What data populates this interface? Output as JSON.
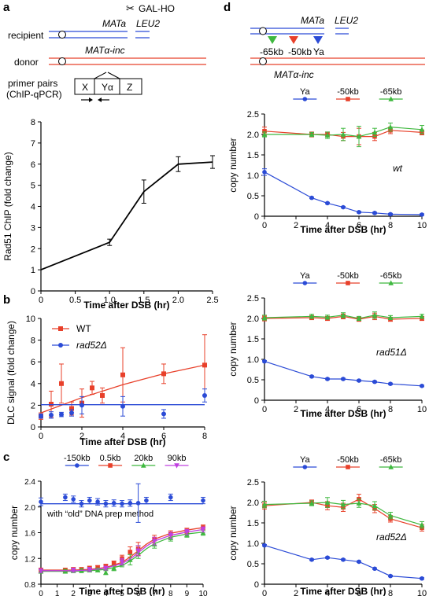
{
  "schematic_left": {
    "panel_letter": "a",
    "recipient_label": "recipient",
    "donor_label": "donor",
    "primer_label_line1": "primer pairs",
    "primer_label_line2": "(ChIP-qPCR)",
    "mata_label": "MATa",
    "leu2_label": "LEU2",
    "galho_label": "GAL-HO",
    "matalpha_label": "MATα-inc",
    "box_x": "X",
    "box_ya": "Yα",
    "box_z": "Z"
  },
  "schematic_right": {
    "panel_letter": "d",
    "mata_label": "MATa",
    "leu2_label": "LEU2",
    "matalpha_label": "MATα-inc",
    "pos_65_label": "-65kb",
    "pos_50_label": "-50kb",
    "pos_ya_label": "Ya"
  },
  "colors": {
    "blue": "#2b4bd6",
    "red": "#e8402a",
    "green": "#3fb83f",
    "magenta": "#c040e0",
    "black": "#000000"
  },
  "chart_data": [
    {
      "id": "a",
      "type": "line",
      "xlabel": "Time after DSB (hr)",
      "ylabel": "Rad51 ChIP (fold change)",
      "xlim": [
        0,
        2.5
      ],
      "ylim": [
        0,
        8
      ],
      "xticks": [
        "0",
        "0.5",
        "1.0",
        "1.5",
        "2.0",
        "2.5"
      ],
      "yticks": [
        "0",
        "1",
        "2",
        "3",
        "4",
        "5",
        "6",
        "7",
        "8"
      ],
      "series": [
        {
          "color": "#000000",
          "x": [
            0,
            1.0,
            1.5,
            2.0,
            2.5
          ],
          "y": [
            1.0,
            2.3,
            4.7,
            6.0,
            6.1
          ],
          "err": [
            0,
            0.15,
            0.55,
            0.35,
            0.3
          ]
        }
      ]
    },
    {
      "id": "b",
      "type": "scatter",
      "panel_letter": "b",
      "xlabel": "Time after DSB (hr)",
      "ylabel": "DLC signal (fold change)",
      "xlim": [
        0,
        8
      ],
      "ylim": [
        0,
        10
      ],
      "xticks": [
        "0",
        "2",
        "4",
        "6",
        "8"
      ],
      "yticks": [
        "0",
        "2",
        "4",
        "6",
        "8",
        "10"
      ],
      "legend": [
        {
          "name": "WT",
          "color": "#e8402a"
        },
        {
          "name": "rad52Δ",
          "color": "#2b4bd6"
        }
      ],
      "series": [
        {
          "name": "WT",
          "color": "#e8402a",
          "marker": "square",
          "x": [
            0,
            0.5,
            1.0,
            1.5,
            2.0,
            2.5,
            3.0,
            4.0,
            6.0,
            8.0
          ],
          "y": [
            1.0,
            2.1,
            4.0,
            1.7,
            2.2,
            3.6,
            2.9,
            4.8,
            4.9,
            5.7
          ],
          "err": [
            0.3,
            1.2,
            1.8,
            0.6,
            1.3,
            0.6,
            0.7,
            2.5,
            0.9,
            2.8
          ],
          "fit": [
            [
              0,
              1.3
            ],
            [
              1,
              2.0
            ],
            [
              2,
              2.7
            ],
            [
              3,
              3.3
            ],
            [
              4,
              3.9
            ],
            [
              5,
              4.4
            ],
            [
              6,
              4.9
            ],
            [
              7,
              5.3
            ],
            [
              8,
              5.7
            ]
          ]
        },
        {
          "name": "rad52Δ",
          "color": "#2b4bd6",
          "marker": "circle",
          "x": [
            0,
            0.5,
            1.0,
            1.5,
            2.0,
            4.0,
            6.0,
            8.0
          ],
          "y": [
            1.0,
            1.1,
            1.15,
            1.3,
            2.0,
            1.9,
            1.2,
            2.9
          ],
          "err": [
            0.2,
            0.3,
            0.2,
            0.3,
            0.8,
            0.9,
            0.4,
            0.6
          ],
          "fit": [
            [
              0,
              2.05
            ],
            [
              8,
              2.05
            ]
          ]
        }
      ]
    },
    {
      "id": "c",
      "type": "scatter",
      "panel_letter": "c",
      "annotation": "with “old” DNA prep method",
      "xlabel": "Time after DSB (hr)",
      "ylabel": "copy number",
      "xlim": [
        0,
        10
      ],
      "ylim": [
        0.8,
        2.4
      ],
      "xticks": [
        "0",
        "1",
        "2",
        "3",
        "4",
        "5",
        "6",
        "7",
        "8",
        "9",
        "10"
      ],
      "yticks": [
        "0.8",
        "1.2",
        "1.6",
        "2.0",
        "2.4"
      ],
      "legend": [
        {
          "name": "-150kb",
          "color": "#2b4bd6",
          "marker": "circle"
        },
        {
          "name": "0.5kb",
          "color": "#e8402a",
          "marker": "square"
        },
        {
          "name": "20kb",
          "color": "#3fb83f",
          "marker": "triangle"
        },
        {
          "name": "90kb",
          "color": "#c040e0",
          "marker": "triangle-down"
        }
      ],
      "series": [
        {
          "name": "-150kb",
          "color": "#2b4bd6",
          "marker": "circle",
          "x": [
            0,
            1.5,
            2,
            2.5,
            3,
            3.5,
            4,
            4.5,
            5,
            5.5,
            6,
            6.5,
            8,
            10
          ],
          "y": [
            2.08,
            2.15,
            2.12,
            2.05,
            2.1,
            2.08,
            2.05,
            2.06,
            2.05,
            2.06,
            2.06,
            2.1,
            2.15,
            2.1
          ],
          "err": [
            0.06,
            0.05,
            0.05,
            0.05,
            0.05,
            0.05,
            0.05,
            0.05,
            0.05,
            0.05,
            0.3,
            0.05,
            0.05,
            0.05
          ],
          "fit": [
            [
              0,
              2.05
            ],
            [
              10,
              2.05
            ]
          ]
        },
        {
          "name": "0.5kb",
          "color": "#e8402a",
          "marker": "square",
          "x": [
            0,
            1.5,
            2,
            2.5,
            3,
            3.5,
            4,
            4.5,
            5,
            5.5,
            6,
            7,
            8,
            9,
            10
          ],
          "y": [
            1.02,
            1.02,
            1.03,
            1.03,
            1.05,
            1.06,
            1.08,
            1.12,
            1.2,
            1.3,
            1.35,
            1.5,
            1.58,
            1.63,
            1.68
          ],
          "err": [
            0.03,
            0.03,
            0.03,
            0.03,
            0.03,
            0.03,
            0.03,
            0.04,
            0.05,
            0.08,
            0.1,
            0.06,
            0.05,
            0.04,
            0.04
          ],
          "fit": [
            [
              0,
              1.02
            ],
            [
              2,
              1.02
            ],
            [
              3,
              1.03
            ],
            [
              4,
              1.06
            ],
            [
              5,
              1.14
            ],
            [
              5.5,
              1.22
            ],
            [
              6,
              1.32
            ],
            [
              6.5,
              1.42
            ],
            [
              7,
              1.5
            ],
            [
              8,
              1.59
            ],
            [
              9,
              1.64
            ],
            [
              10,
              1.68
            ]
          ]
        },
        {
          "name": "20kb",
          "color": "#3fb83f",
          "marker": "triangle",
          "x": [
            0,
            1.5,
            2,
            2.5,
            3,
            3.5,
            4,
            4.5,
            5,
            5.5,
            6,
            7,
            8,
            9,
            10
          ],
          "y": [
            1.0,
            1.0,
            1.01,
            1.01,
            1.02,
            1.02,
            0.98,
            1.05,
            1.12,
            1.18,
            1.3,
            1.42,
            1.52,
            1.57,
            1.6
          ],
          "err": [
            0.03,
            0.03,
            0.03,
            0.03,
            0.03,
            0.03,
            0.03,
            0.04,
            0.05,
            0.08,
            0.1,
            0.06,
            0.05,
            0.04,
            0.04
          ],
          "fit": [
            [
              0,
              1.0
            ],
            [
              2,
              1.0
            ],
            [
              3,
              1.01
            ],
            [
              4,
              1.03
            ],
            [
              5,
              1.09
            ],
            [
              5.5,
              1.16
            ],
            [
              6,
              1.25
            ],
            [
              6.5,
              1.35
            ],
            [
              7,
              1.43
            ],
            [
              8,
              1.53
            ],
            [
              9,
              1.58
            ],
            [
              10,
              1.61
            ]
          ]
        },
        {
          "name": "90kb",
          "color": "#c040e0",
          "marker": "triangle-down",
          "x": [
            0,
            2,
            3,
            4,
            5,
            6,
            7,
            8,
            9,
            10
          ],
          "y": [
            1.01,
            1.02,
            1.03,
            1.05,
            1.15,
            1.32,
            1.47,
            1.56,
            1.61,
            1.65
          ],
          "err": [
            0.03,
            0.03,
            0.03,
            0.03,
            0.05,
            0.08,
            0.06,
            0.05,
            0.04,
            0.04
          ],
          "fit": [
            [
              0,
              1.01
            ],
            [
              2,
              1.01
            ],
            [
              3,
              1.02
            ],
            [
              4,
              1.05
            ],
            [
              5,
              1.12
            ],
            [
              5.5,
              1.19
            ],
            [
              6,
              1.29
            ],
            [
              6.5,
              1.39
            ],
            [
              7,
              1.47
            ],
            [
              8,
              1.56
            ],
            [
              9,
              1.61
            ],
            [
              10,
              1.65
            ]
          ]
        }
      ]
    },
    {
      "id": "d1",
      "type": "line",
      "strain_label": "wt",
      "xlabel": "Time after DSB (hr)",
      "ylabel": "copy number",
      "xlim": [
        0,
        10
      ],
      "ylim": [
        0,
        2.5
      ],
      "xticks": [
        "0",
        "2",
        "4",
        "6",
        "8",
        "10"
      ],
      "yticks": [
        "0",
        "0.5",
        "1.0",
        "1.5",
        "2.0",
        "2.5"
      ],
      "legend": [
        {
          "name": "Ya",
          "color": "#2b4bd6",
          "marker": "circle"
        },
        {
          "name": "-50kb",
          "color": "#e8402a",
          "marker": "square"
        },
        {
          "name": "-65kb",
          "color": "#3fb83f",
          "marker": "triangle"
        }
      ],
      "series": [
        {
          "name": "Ya",
          "color": "#2b4bd6",
          "marker": "circle",
          "x": [
            0,
            3,
            4,
            5,
            6,
            7,
            8,
            10
          ],
          "y": [
            1.08,
            0.45,
            0.32,
            0.22,
            0.1,
            0.08,
            0.05,
            0.04
          ],
          "err": [
            0.08,
            0.02,
            0.02,
            0.02,
            0.02,
            0.02,
            0.02,
            0.02
          ]
        },
        {
          "name": "-50kb",
          "color": "#e8402a",
          "marker": "square",
          "x": [
            0,
            3,
            4,
            5,
            6,
            7,
            8,
            10
          ],
          "y": [
            2.08,
            2.0,
            2.0,
            1.95,
            1.95,
            1.95,
            2.1,
            2.05
          ],
          "err": [
            0.1,
            0.06,
            0.06,
            0.1,
            0.2,
            0.1,
            0.08,
            0.06
          ]
        },
        {
          "name": "-65kb",
          "color": "#3fb83f",
          "marker": "triangle",
          "x": [
            0,
            3,
            4,
            5,
            6,
            7,
            8,
            10
          ],
          "y": [
            2.0,
            2.0,
            1.98,
            2.0,
            1.95,
            2.05,
            2.18,
            2.12
          ],
          "err": [
            0.06,
            0.05,
            0.08,
            0.15,
            0.25,
            0.1,
            0.1,
            0.1
          ]
        }
      ]
    },
    {
      "id": "d2",
      "type": "line",
      "strain_label": "rad51Δ",
      "xlabel": "Time after DSB (hr)",
      "ylabel": "copy number",
      "xlim": [
        0,
        10
      ],
      "ylim": [
        0,
        2.5
      ],
      "xticks": [
        "0",
        "2",
        "4",
        "6",
        "8",
        "10"
      ],
      "yticks": [
        "0",
        "0.5",
        "1.0",
        "1.5",
        "2.0",
        "2.5"
      ],
      "legend": [
        {
          "name": "Ya",
          "color": "#2b4bd6",
          "marker": "circle"
        },
        {
          "name": "-50kb",
          "color": "#e8402a",
          "marker": "square"
        },
        {
          "name": "-65kb",
          "color": "#3fb83f",
          "marker": "triangle"
        }
      ],
      "series": [
        {
          "name": "Ya",
          "color": "#2b4bd6",
          "marker": "circle",
          "x": [
            0,
            3,
            4,
            5,
            6,
            7,
            8,
            10
          ],
          "y": [
            0.95,
            0.58,
            0.52,
            0.52,
            0.48,
            0.45,
            0.4,
            0.35
          ],
          "err": [
            0.02,
            0.02,
            0.02,
            0.02,
            0.02,
            0.02,
            0.02,
            0.02
          ]
        },
        {
          "name": "-50kb",
          "color": "#e8402a",
          "marker": "square",
          "x": [
            0,
            3,
            4,
            5,
            6,
            7,
            8,
            10
          ],
          "y": [
            2.0,
            2.02,
            2.0,
            2.05,
            1.98,
            2.05,
            1.98,
            2.0
          ],
          "err": [
            0.06,
            0.05,
            0.05,
            0.06,
            0.05,
            0.08,
            0.05,
            0.05
          ]
        },
        {
          "name": "-65kb",
          "color": "#3fb83f",
          "marker": "triangle",
          "x": [
            0,
            3,
            4,
            5,
            6,
            7,
            8,
            10
          ],
          "y": [
            2.02,
            2.05,
            2.03,
            2.08,
            2.0,
            2.08,
            2.02,
            2.05
          ],
          "err": [
            0.06,
            0.05,
            0.05,
            0.06,
            0.05,
            0.08,
            0.05,
            0.05
          ]
        }
      ]
    },
    {
      "id": "d3",
      "type": "line",
      "strain_label": "rad52Δ",
      "xlabel": "Time after DSB (hr)",
      "ylabel": "copy number",
      "xlim": [
        0,
        10
      ],
      "ylim": [
        0,
        2.5
      ],
      "xticks": [
        "0",
        "2",
        "4",
        "6",
        "8",
        "10"
      ],
      "yticks": [
        "0",
        "0.5",
        "1.0",
        "1.5",
        "2.0",
        "2.5"
      ],
      "legend": [
        {
          "name": "Ya",
          "color": "#2b4bd6",
          "marker": "circle"
        },
        {
          "name": "-50kb",
          "color": "#e8402a",
          "marker": "square"
        },
        {
          "name": "-65kb",
          "color": "#3fb83f",
          "marker": "triangle"
        }
      ],
      "series": [
        {
          "name": "Ya",
          "color": "#2b4bd6",
          "marker": "circle",
          "x": [
            0,
            3,
            4,
            5,
            6,
            7,
            8,
            10
          ],
          "y": [
            0.95,
            0.6,
            0.65,
            0.6,
            0.55,
            0.38,
            0.2,
            0.14
          ],
          "err": [
            0.02,
            0.02,
            0.02,
            0.02,
            0.02,
            0.02,
            0.02,
            0.02
          ]
        },
        {
          "name": "-50kb",
          "color": "#e8402a",
          "marker": "square",
          "x": [
            0,
            3,
            4,
            5,
            6,
            7,
            8,
            10
          ],
          "y": [
            1.92,
            2.0,
            1.92,
            1.88,
            2.08,
            1.85,
            1.6,
            1.38
          ],
          "err": [
            0.08,
            0.06,
            0.1,
            0.1,
            0.12,
            0.1,
            0.08,
            0.08
          ]
        },
        {
          "name": "-65kb",
          "color": "#3fb83f",
          "marker": "triangle",
          "x": [
            0,
            3,
            4,
            5,
            6,
            7,
            8,
            10
          ],
          "y": [
            1.95,
            1.98,
            2.0,
            1.95,
            1.98,
            1.92,
            1.68,
            1.45
          ],
          "err": [
            0.08,
            0.06,
            0.12,
            0.1,
            0.1,
            0.1,
            0.08,
            0.08
          ]
        }
      ]
    }
  ]
}
